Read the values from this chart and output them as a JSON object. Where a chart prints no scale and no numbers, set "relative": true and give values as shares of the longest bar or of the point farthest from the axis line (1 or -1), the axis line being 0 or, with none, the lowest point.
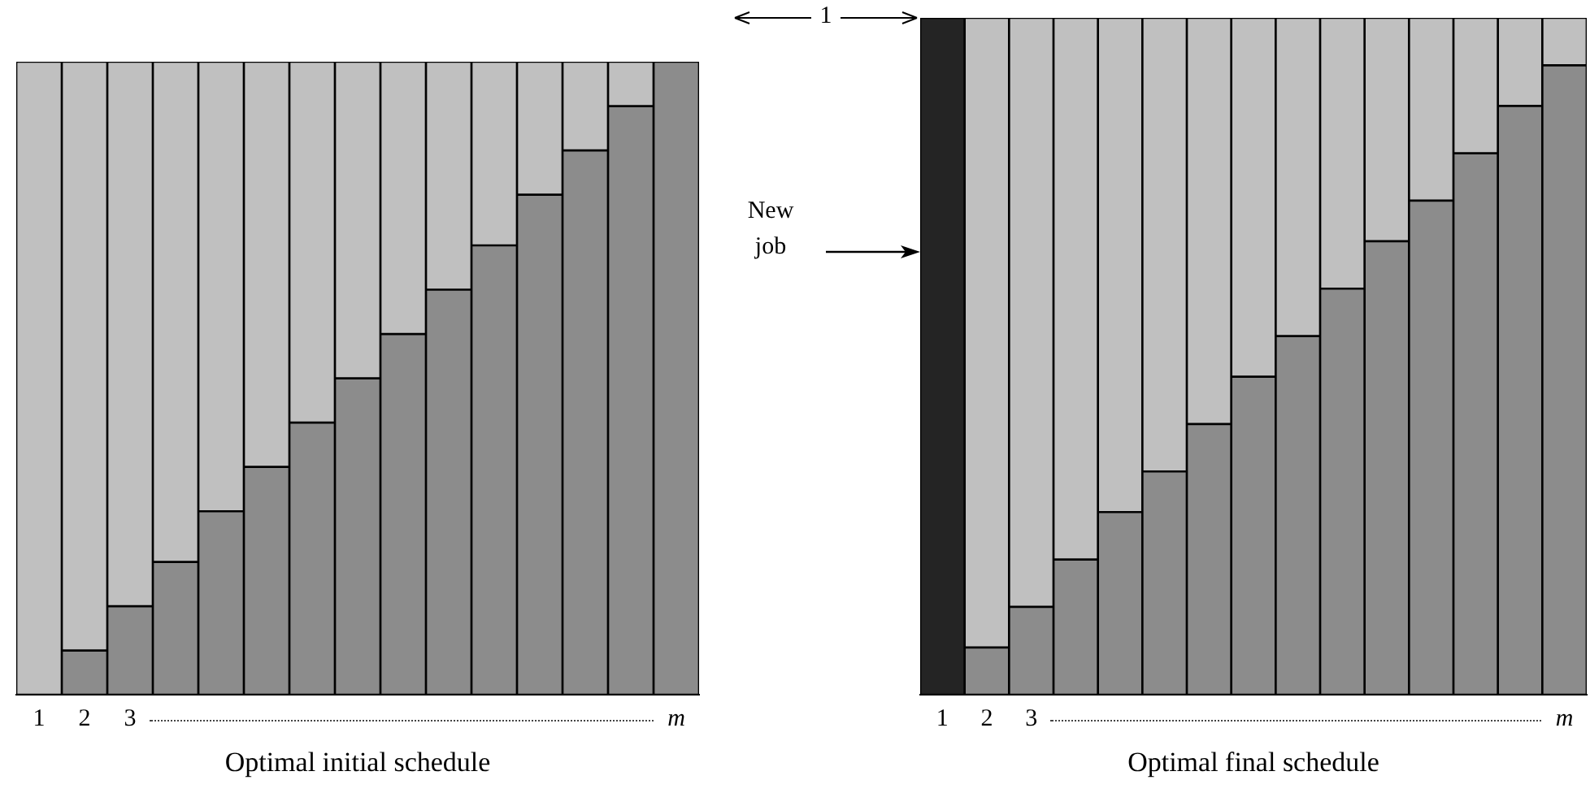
{
  "chart_data": [
    {
      "type": "bar",
      "stacked": true,
      "relative": true,
      "title": "Optimal initial schedule",
      "categories": [
        "1",
        "2",
        "3",
        null,
        null,
        null,
        null,
        null,
        null,
        null,
        null,
        null,
        null,
        null,
        "m"
      ],
      "grid": false,
      "legend": false,
      "series": [
        {
          "color": "#8c8c8c",
          "values": [
            0,
            0.07,
            0.14,
            0.21,
            0.29,
            0.36,
            0.43,
            0.5,
            0.57,
            0.64,
            0.71,
            0.79,
            0.86,
            0.93,
            1
          ]
        },
        {
          "color": "#c0c0c0",
          "values": [
            1,
            0.93,
            0.86,
            0.79,
            0.71,
            0.64,
            0.57,
            0.5,
            0.43,
            0.36,
            0.29,
            0.21,
            0.14,
            0.07,
            0
          ]
        }
      ]
    },
    {
      "type": "bar",
      "stacked": true,
      "relative": true,
      "title": "Optimal final schedule",
      "categories": [
        "1",
        "2",
        "3",
        null,
        null,
        null,
        null,
        null,
        null,
        null,
        null,
        null,
        null,
        null,
        "m"
      ],
      "grid": false,
      "legend": false,
      "annotations": [
        "New job",
        "1"
      ],
      "series": [
        {
          "colors": [
            "#242424",
            "#8c8c8c",
            "#8c8c8c",
            "#8c8c8c",
            "#8c8c8c",
            "#8c8c8c",
            "#8c8c8c",
            "#8c8c8c",
            "#8c8c8c",
            "#8c8c8c",
            "#8c8c8c",
            "#8c8c8c",
            "#8c8c8c",
            "#8c8c8c",
            "#8c8c8c"
          ],
          "values": [
            1,
            0.07,
            0.13,
            0.2,
            0.27,
            0.33,
            0.4,
            0.47,
            0.53,
            0.6,
            0.67,
            0.73,
            0.8,
            0.87,
            0.93
          ]
        },
        {
          "color": "#c0c0c0",
          "values": [
            0,
            0.93,
            0.87,
            0.8,
            0.73,
            0.67,
            0.6,
            0.53,
            0.47,
            0.4,
            0.33,
            0.27,
            0.2,
            0.13,
            0.07
          ]
        }
      ]
    }
  ]
}
